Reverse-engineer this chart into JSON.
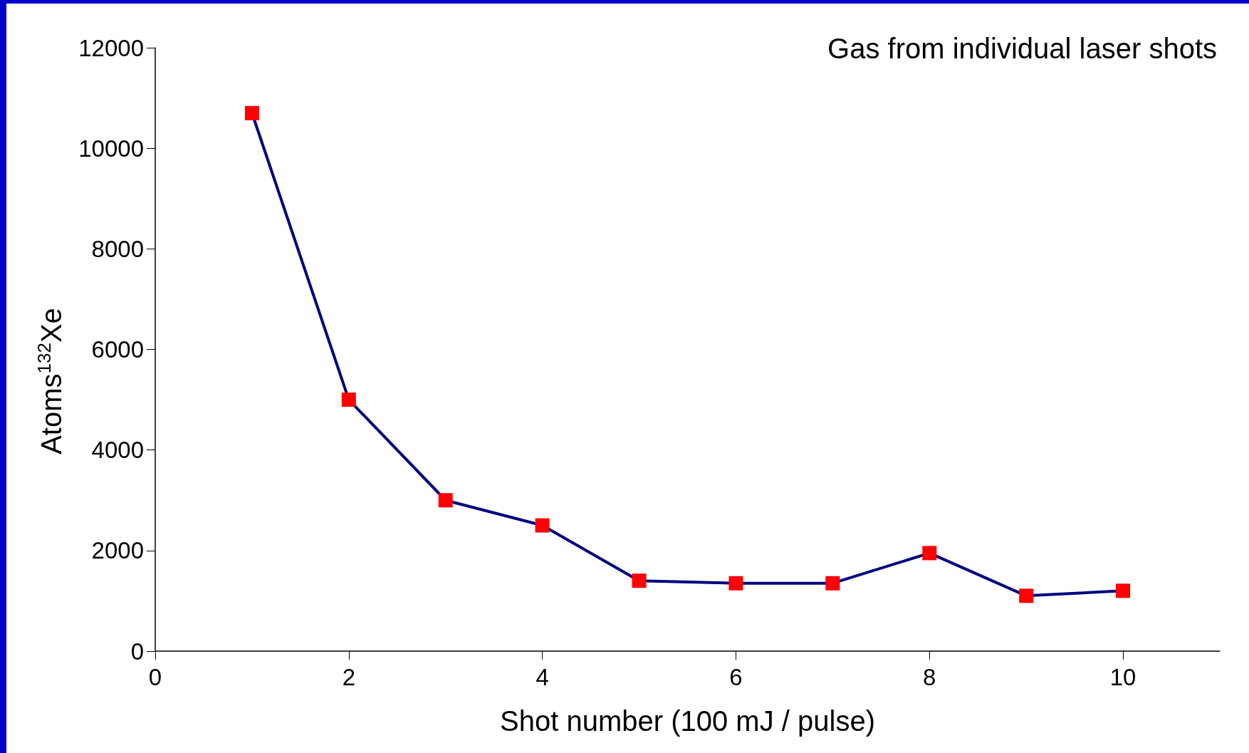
{
  "chart_data": {
    "type": "line",
    "title": "Gas from individual laser shots",
    "xlabel": "Shot number (100 mJ / pulse)",
    "ylabel": "Atoms$^{132}$Xe",
    "x": [
      1,
      2,
      3,
      4,
      5,
      6,
      7,
      8,
      9,
      10
    ],
    "series": [
      {
        "color": "#000080",
        "colors": [
          "#ff0000",
          "#ff0000",
          "#ff0000",
          "#ff0000",
          "#ff0000",
          "#ff0000",
          "#ff0000",
          "#ff0000",
          "#ff0000",
          "#ff0000"
        ],
        "values": [
          10700,
          5000,
          3000,
          2500,
          1400,
          1350,
          1350,
          1950,
          1100,
          1200
        ]
      }
    ],
    "marker": "square",
    "line_style": "solid",
    "grid": false,
    "xlim": [
      0,
      11
    ],
    "xticks": [
      0,
      2,
      4,
      6,
      8,
      10
    ],
    "ylim": [
      0,
      12000
    ],
    "yticks": [
      0,
      2000,
      4000,
      6000,
      8000,
      10000,
      12000
    ]
  }
}
